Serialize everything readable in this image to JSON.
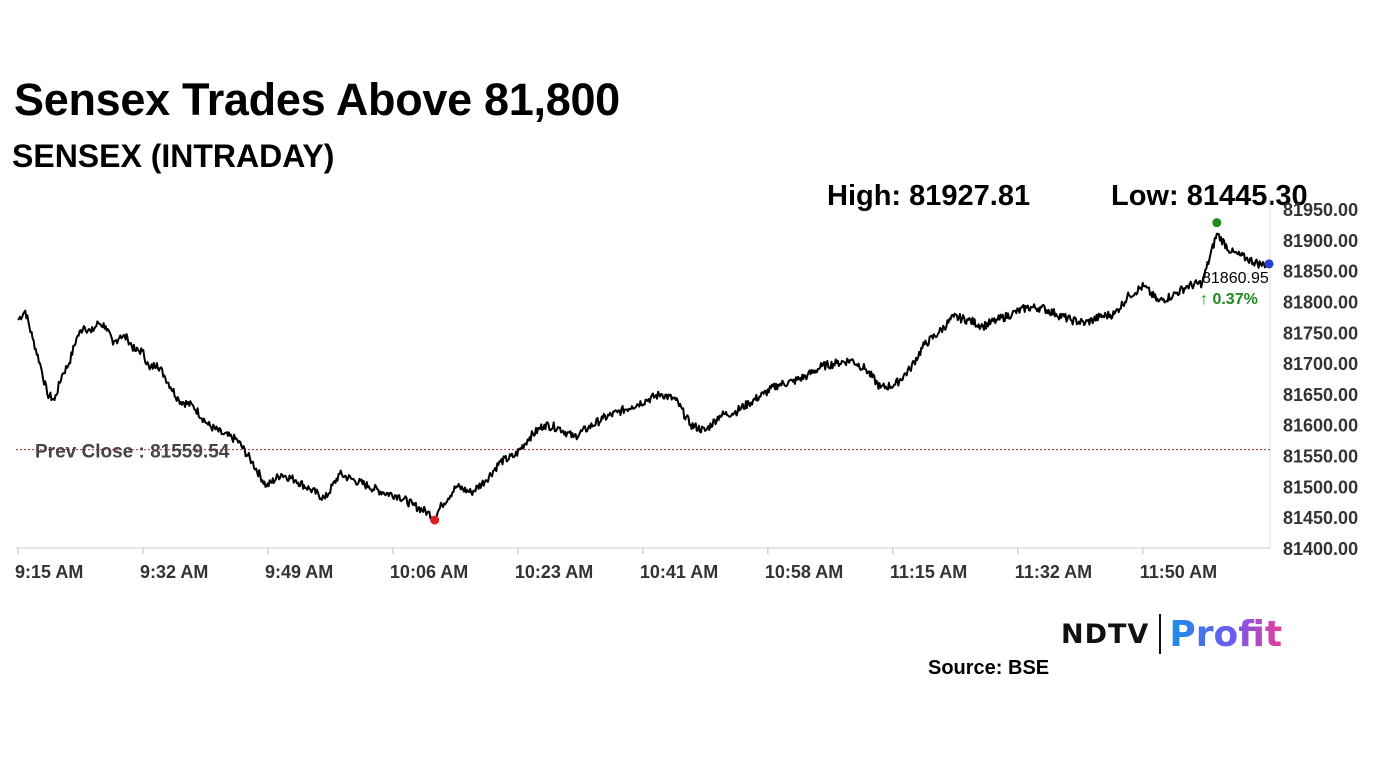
{
  "title": "Sensex Trades Above 81,800",
  "subtitle": "SENSEX (INTRADAY)",
  "stats": {
    "high_label": "High: 81927.81",
    "low_label": "Low: 81445.30"
  },
  "source": "Source: BSE",
  "logo": {
    "ndtv": "NDTV",
    "profit": "Profit"
  },
  "colors": {
    "line": "#000000",
    "high_marker": "#1e8a1e",
    "low_marker": "#e02020",
    "last_marker": "#1f3fd6",
    "prev_close": "#b03030",
    "change_up": "#1e8a1e"
  },
  "chart_data": {
    "type": "line",
    "title": "SENSEX (INTRADAY)",
    "xlabel": "",
    "ylabel": "",
    "ylim": [
      81400,
      81950
    ],
    "y_ticks": [
      "81400.00",
      "81450.00",
      "81500.00",
      "81550.00",
      "81600.00",
      "81650.00",
      "81700.00",
      "81750.00",
      "81800.00",
      "81850.00",
      "81900.00",
      "81950.00"
    ],
    "x_ticks": [
      "9:15 AM",
      "9:32 AM",
      "9:49 AM",
      "10:06 AM",
      "10:23 AM",
      "10:41 AM",
      "10:58 AM",
      "11:15 AM",
      "11:32 AM",
      "11:50 AM"
    ],
    "x_minutes_range": [
      0,
      171
    ],
    "prev_close": 81559.54,
    "prev_close_label": "Prev Close : 81559.54",
    "high": {
      "minutes": 164,
      "value": 81927.81
    },
    "low": {
      "minutes": 57,
      "value": 81445.3
    },
    "last": {
      "minutes": 171,
      "value": 81860.95,
      "label": "81860.95",
      "change": "↑ 0.37%"
    },
    "series": [
      {
        "name": "SENSEX",
        "x_minutes": [
          0,
          1,
          2,
          3,
          4,
          5,
          6,
          7,
          8,
          9,
          10,
          11,
          12,
          13,
          14,
          15,
          16,
          17,
          18,
          19,
          20,
          22,
          24,
          26,
          28,
          30,
          32,
          34,
          36,
          38,
          40,
          42,
          44,
          46,
          48,
          50,
          52,
          54,
          56,
          57,
          58,
          60,
          62,
          64,
          66,
          68,
          70,
          72,
          74,
          76,
          78,
          80,
          82,
          84,
          86,
          88,
          90,
          92,
          94,
          96,
          98,
          100,
          102,
          104,
          106,
          108,
          110,
          112,
          114,
          116,
          118,
          120,
          122,
          124,
          126,
          128,
          130,
          132,
          134,
          136,
          138,
          140,
          142,
          144,
          146,
          148,
          150,
          152,
          154,
          156,
          158,
          160,
          162,
          164,
          166,
          168,
          170,
          171
        ],
        "values": [
          81770,
          81785,
          81740,
          81700,
          81650,
          81640,
          81680,
          81700,
          81740,
          81760,
          81750,
          81765,
          81760,
          81730,
          81745,
          81740,
          81720,
          81720,
          81690,
          81700,
          81680,
          81640,
          81630,
          81600,
          81585,
          81575,
          81540,
          81500,
          81520,
          81510,
          81495,
          81480,
          81520,
          81510,
          81500,
          81490,
          81485,
          81470,
          81458,
          81450,
          81470,
          81500,
          81490,
          81510,
          81540,
          81550,
          81580,
          81600,
          81595,
          81580,
          81595,
          81610,
          81620,
          81630,
          81640,
          81650,
          81640,
          81600,
          81590,
          81615,
          81620,
          81635,
          81650,
          81665,
          81670,
          81680,
          81695,
          81700,
          81705,
          81690,
          81660,
          81665,
          81690,
          81730,
          81750,
          81775,
          81770,
          81760,
          81770,
          81780,
          81790,
          81790,
          81780,
          81770,
          81765,
          81775,
          81780,
          81810,
          81825,
          81800,
          81810,
          81825,
          81830,
          81910,
          81880,
          81870,
          81860,
          81860.95
        ]
      }
    ]
  }
}
